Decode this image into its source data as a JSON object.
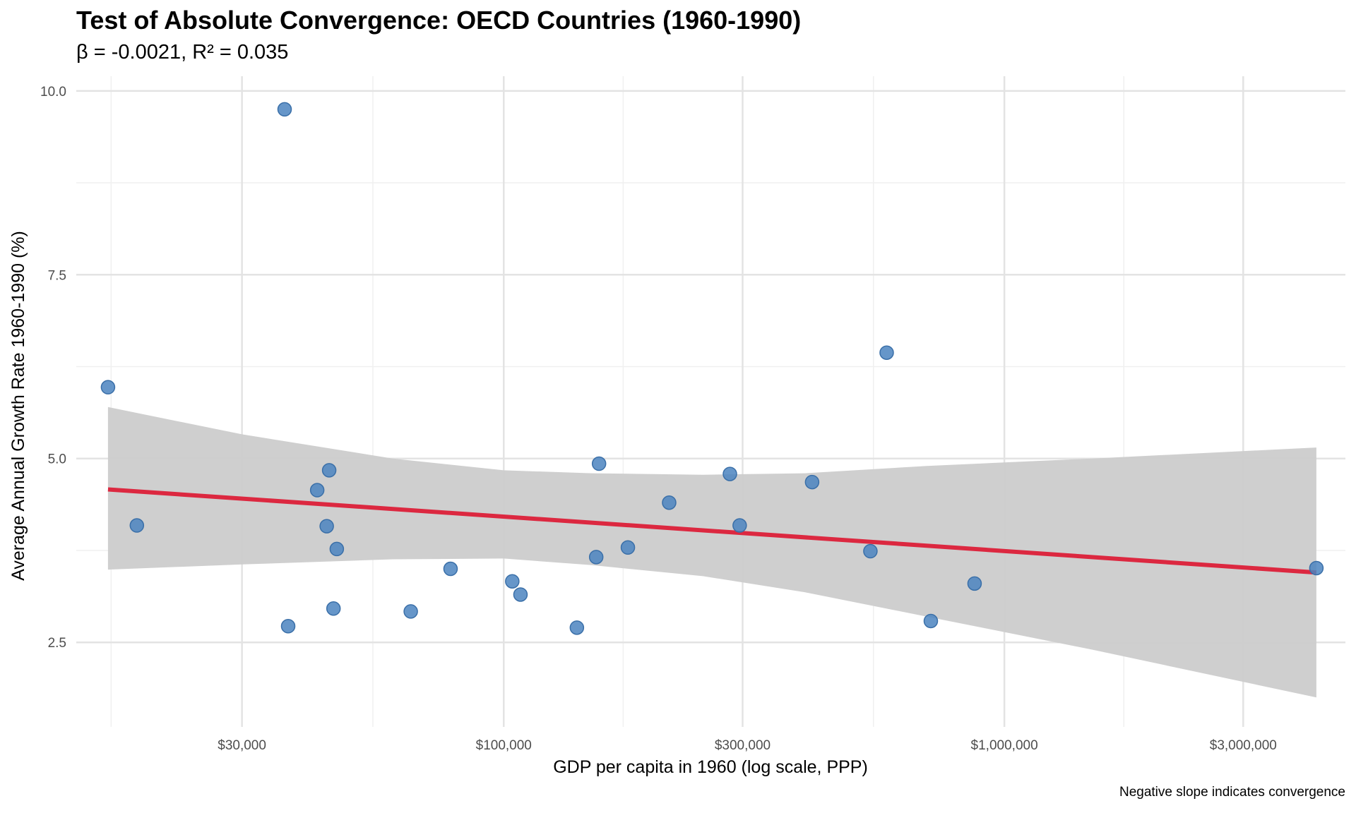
{
  "chart_data": {
    "type": "scatter",
    "title": "Test of Absolute Convergence: OECD Countries (1960-1990)",
    "subtitle": "β = -0.0021, R² = 0.035",
    "xlabel": "GDP per capita in 1960 (log scale, PPP)",
    "ylabel": "Average Annual Growth Rate 1960-1990 (%)",
    "caption": "Negative slope indicates convergence",
    "x_scale": "log10",
    "xlim": [
      14000,
      4800000
    ],
    "ylim": [
      1.35,
      10.2
    ],
    "x_ticks": [
      {
        "value": 30000,
        "label": "$30,000"
      },
      {
        "value": 100000,
        "label": "$100,000"
      },
      {
        "value": 300000,
        "label": "$300,000"
      },
      {
        "value": 1000000,
        "label": "$1,000,000"
      },
      {
        "value": 3000000,
        "label": "$3,000,000"
      }
    ],
    "y_ticks": [
      {
        "value": 2.5,
        "label": "2.5"
      },
      {
        "value": 5.0,
        "label": "5.0"
      },
      {
        "value": 7.5,
        "label": "7.5"
      },
      {
        "value": 10.0,
        "label": "10.0"
      }
    ],
    "grid": true,
    "points": [
      {
        "x": 16200,
        "y": 5.97
      },
      {
        "x": 18500,
        "y": 4.09
      },
      {
        "x": 36500,
        "y": 9.75
      },
      {
        "x": 37100,
        "y": 2.72
      },
      {
        "x": 42400,
        "y": 4.57
      },
      {
        "x": 44300,
        "y": 4.08
      },
      {
        "x": 44800,
        "y": 4.84
      },
      {
        "x": 45700,
        "y": 2.96
      },
      {
        "x": 46400,
        "y": 3.77
      },
      {
        "x": 65200,
        "y": 2.92
      },
      {
        "x": 78300,
        "y": 3.5
      },
      {
        "x": 104000,
        "y": 3.33
      },
      {
        "x": 108000,
        "y": 3.15
      },
      {
        "x": 140000,
        "y": 2.7
      },
      {
        "x": 153000,
        "y": 3.66
      },
      {
        "x": 155000,
        "y": 4.93
      },
      {
        "x": 177000,
        "y": 3.79
      },
      {
        "x": 214000,
        "y": 4.4
      },
      {
        "x": 283000,
        "y": 4.79
      },
      {
        "x": 296000,
        "y": 4.09
      },
      {
        "x": 413000,
        "y": 4.68
      },
      {
        "x": 540000,
        "y": 3.74
      },
      {
        "x": 582000,
        "y": 6.44
      },
      {
        "x": 713000,
        "y": 2.79
      },
      {
        "x": 872000,
        "y": 3.3
      },
      {
        "x": 4200000,
        "y": 3.51
      }
    ],
    "regression": {
      "x": [
        16200,
        4200000
      ],
      "y": [
        4.58,
        3.45
      ],
      "color": "#dc2840"
    },
    "confidence_band": {
      "x": [
        16200,
        30000,
        60000,
        100000,
        150000,
        250000,
        400000,
        700000,
        1500000,
        4200000
      ],
      "upper": [
        5.7,
        5.33,
        5.0,
        4.84,
        4.8,
        4.78,
        4.8,
        4.9,
        5.0,
        5.15
      ],
      "lower": [
        3.49,
        3.56,
        3.63,
        3.64,
        3.55,
        3.4,
        3.18,
        2.85,
        2.4,
        1.75
      ],
      "color": "#cccccc"
    },
    "point_color": "#4b84c0"
  }
}
